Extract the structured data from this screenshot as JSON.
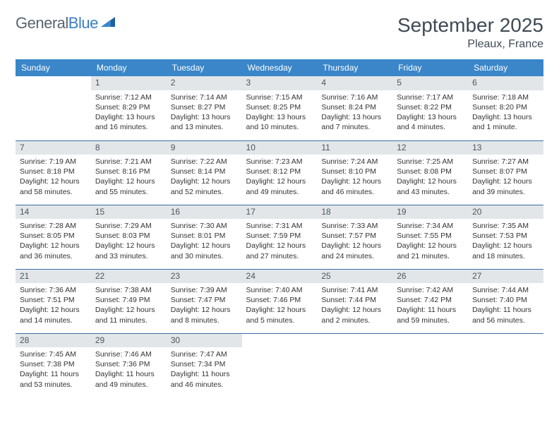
{
  "logo": {
    "text1": "General",
    "text2": "Blue"
  },
  "title": "September 2025",
  "location": "Pleaux, France",
  "colors": {
    "header_bg": "#3a86c8",
    "header_text": "#ffffff",
    "daynum_bg": "#e3e6e8",
    "row_border": "#3a6fa5",
    "logo_gray": "#5a6570",
    "logo_blue": "#3a7fc4"
  },
  "weekdays": [
    "Sunday",
    "Monday",
    "Tuesday",
    "Wednesday",
    "Thursday",
    "Friday",
    "Saturday"
  ],
  "weeks": [
    [
      {
        "n": "",
        "sr": "",
        "ss": "",
        "dl": ""
      },
      {
        "n": "1",
        "sr": "Sunrise: 7:12 AM",
        "ss": "Sunset: 8:29 PM",
        "dl": "Daylight: 13 hours and 16 minutes."
      },
      {
        "n": "2",
        "sr": "Sunrise: 7:14 AM",
        "ss": "Sunset: 8:27 PM",
        "dl": "Daylight: 13 hours and 13 minutes."
      },
      {
        "n": "3",
        "sr": "Sunrise: 7:15 AM",
        "ss": "Sunset: 8:25 PM",
        "dl": "Daylight: 13 hours and 10 minutes."
      },
      {
        "n": "4",
        "sr": "Sunrise: 7:16 AM",
        "ss": "Sunset: 8:24 PM",
        "dl": "Daylight: 13 hours and 7 minutes."
      },
      {
        "n": "5",
        "sr": "Sunrise: 7:17 AM",
        "ss": "Sunset: 8:22 PM",
        "dl": "Daylight: 13 hours and 4 minutes."
      },
      {
        "n": "6",
        "sr": "Sunrise: 7:18 AM",
        "ss": "Sunset: 8:20 PM",
        "dl": "Daylight: 13 hours and 1 minute."
      }
    ],
    [
      {
        "n": "7",
        "sr": "Sunrise: 7:19 AM",
        "ss": "Sunset: 8:18 PM",
        "dl": "Daylight: 12 hours and 58 minutes."
      },
      {
        "n": "8",
        "sr": "Sunrise: 7:21 AM",
        "ss": "Sunset: 8:16 PM",
        "dl": "Daylight: 12 hours and 55 minutes."
      },
      {
        "n": "9",
        "sr": "Sunrise: 7:22 AM",
        "ss": "Sunset: 8:14 PM",
        "dl": "Daylight: 12 hours and 52 minutes."
      },
      {
        "n": "10",
        "sr": "Sunrise: 7:23 AM",
        "ss": "Sunset: 8:12 PM",
        "dl": "Daylight: 12 hours and 49 minutes."
      },
      {
        "n": "11",
        "sr": "Sunrise: 7:24 AM",
        "ss": "Sunset: 8:10 PM",
        "dl": "Daylight: 12 hours and 46 minutes."
      },
      {
        "n": "12",
        "sr": "Sunrise: 7:25 AM",
        "ss": "Sunset: 8:08 PM",
        "dl": "Daylight: 12 hours and 43 minutes."
      },
      {
        "n": "13",
        "sr": "Sunrise: 7:27 AM",
        "ss": "Sunset: 8:07 PM",
        "dl": "Daylight: 12 hours and 39 minutes."
      }
    ],
    [
      {
        "n": "14",
        "sr": "Sunrise: 7:28 AM",
        "ss": "Sunset: 8:05 PM",
        "dl": "Daylight: 12 hours and 36 minutes."
      },
      {
        "n": "15",
        "sr": "Sunrise: 7:29 AM",
        "ss": "Sunset: 8:03 PM",
        "dl": "Daylight: 12 hours and 33 minutes."
      },
      {
        "n": "16",
        "sr": "Sunrise: 7:30 AM",
        "ss": "Sunset: 8:01 PM",
        "dl": "Daylight: 12 hours and 30 minutes."
      },
      {
        "n": "17",
        "sr": "Sunrise: 7:31 AM",
        "ss": "Sunset: 7:59 PM",
        "dl": "Daylight: 12 hours and 27 minutes."
      },
      {
        "n": "18",
        "sr": "Sunrise: 7:33 AM",
        "ss": "Sunset: 7:57 PM",
        "dl": "Daylight: 12 hours and 24 minutes."
      },
      {
        "n": "19",
        "sr": "Sunrise: 7:34 AM",
        "ss": "Sunset: 7:55 PM",
        "dl": "Daylight: 12 hours and 21 minutes."
      },
      {
        "n": "20",
        "sr": "Sunrise: 7:35 AM",
        "ss": "Sunset: 7:53 PM",
        "dl": "Daylight: 12 hours and 18 minutes."
      }
    ],
    [
      {
        "n": "21",
        "sr": "Sunrise: 7:36 AM",
        "ss": "Sunset: 7:51 PM",
        "dl": "Daylight: 12 hours and 14 minutes."
      },
      {
        "n": "22",
        "sr": "Sunrise: 7:38 AM",
        "ss": "Sunset: 7:49 PM",
        "dl": "Daylight: 12 hours and 11 minutes."
      },
      {
        "n": "23",
        "sr": "Sunrise: 7:39 AM",
        "ss": "Sunset: 7:47 PM",
        "dl": "Daylight: 12 hours and 8 minutes."
      },
      {
        "n": "24",
        "sr": "Sunrise: 7:40 AM",
        "ss": "Sunset: 7:46 PM",
        "dl": "Daylight: 12 hours and 5 minutes."
      },
      {
        "n": "25",
        "sr": "Sunrise: 7:41 AM",
        "ss": "Sunset: 7:44 PM",
        "dl": "Daylight: 12 hours and 2 minutes."
      },
      {
        "n": "26",
        "sr": "Sunrise: 7:42 AM",
        "ss": "Sunset: 7:42 PM",
        "dl": "Daylight: 11 hours and 59 minutes."
      },
      {
        "n": "27",
        "sr": "Sunrise: 7:44 AM",
        "ss": "Sunset: 7:40 PM",
        "dl": "Daylight: 11 hours and 56 minutes."
      }
    ],
    [
      {
        "n": "28",
        "sr": "Sunrise: 7:45 AM",
        "ss": "Sunset: 7:38 PM",
        "dl": "Daylight: 11 hours and 53 minutes."
      },
      {
        "n": "29",
        "sr": "Sunrise: 7:46 AM",
        "ss": "Sunset: 7:36 PM",
        "dl": "Daylight: 11 hours and 49 minutes."
      },
      {
        "n": "30",
        "sr": "Sunrise: 7:47 AM",
        "ss": "Sunset: 7:34 PM",
        "dl": "Daylight: 11 hours and 46 minutes."
      },
      {
        "n": "",
        "sr": "",
        "ss": "",
        "dl": ""
      },
      {
        "n": "",
        "sr": "",
        "ss": "",
        "dl": ""
      },
      {
        "n": "",
        "sr": "",
        "ss": "",
        "dl": ""
      },
      {
        "n": "",
        "sr": "",
        "ss": "",
        "dl": ""
      }
    ]
  ]
}
